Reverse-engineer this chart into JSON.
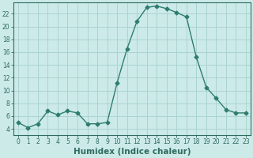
{
  "x": [
    0,
    1,
    2,
    3,
    4,
    5,
    6,
    7,
    8,
    9,
    10,
    11,
    12,
    13,
    14,
    15,
    16,
    17,
    18,
    19,
    20,
    21,
    22,
    23
  ],
  "y": [
    5.0,
    4.2,
    4.8,
    6.8,
    6.2,
    6.8,
    6.5,
    4.8,
    4.8,
    5.0,
    11.2,
    16.5,
    20.8,
    23.0,
    23.2,
    22.8,
    22.2,
    21.5,
    15.2,
    10.5,
    8.8,
    7.0,
    6.5,
    6.5
  ],
  "line_color": "#2e7d6e",
  "marker": "D",
  "marker_size": 2.5,
  "bg_color": "#cceae8",
  "grid_color": "#aad4d0",
  "axis_color": "#2e6b60",
  "xlabel": "Humidex (Indice chaleur)",
  "xlim": [
    -0.5,
    23.5
  ],
  "ylim": [
    3.0,
    23.8
  ],
  "yticks": [
    4,
    6,
    8,
    10,
    12,
    14,
    16,
    18,
    20,
    22
  ],
  "xticks": [
    0,
    1,
    2,
    3,
    4,
    5,
    6,
    7,
    8,
    9,
    10,
    11,
    12,
    13,
    14,
    15,
    16,
    17,
    18,
    19,
    20,
    21,
    22,
    23
  ],
  "tick_fontsize": 5.5,
  "label_fontsize": 7.5
}
